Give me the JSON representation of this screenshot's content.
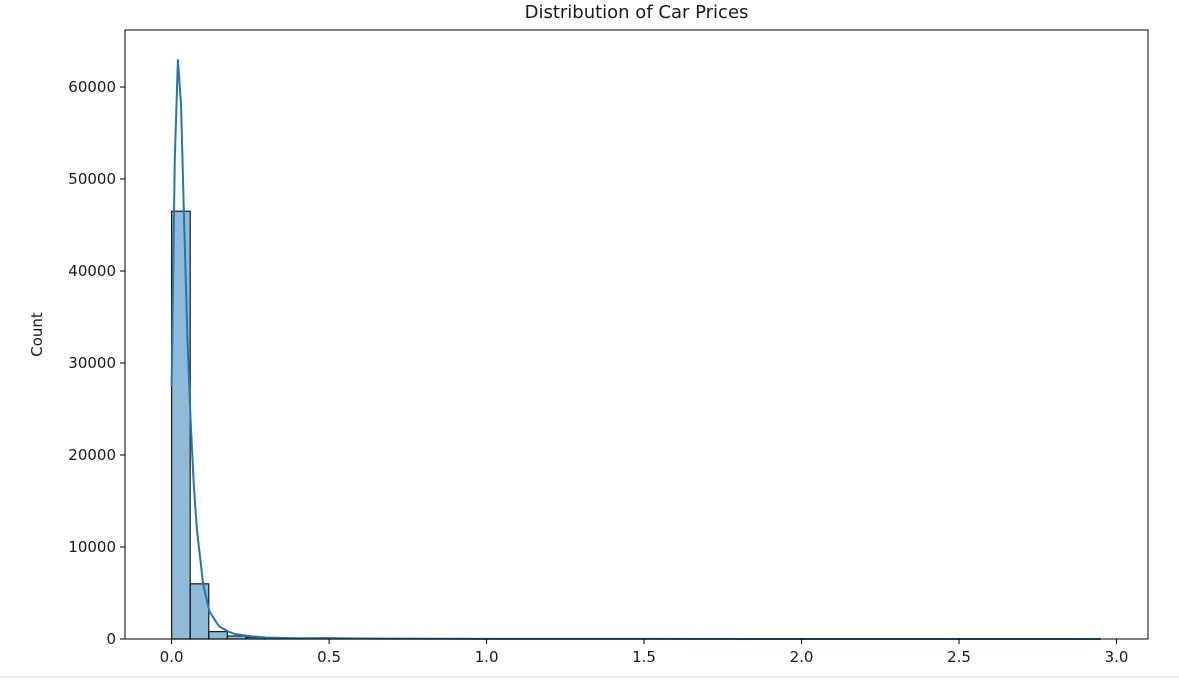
{
  "chart_data": {
    "type": "bar",
    "title": "Distribution of Car Prices",
    "xlabel": "",
    "ylabel": "Count",
    "xlim": [
      -0.148,
      3.1
    ],
    "ylim": [
      0,
      66200
    ],
    "grid": false,
    "legend": "none",
    "colors": {
      "bar_fill": "#1f77b4",
      "kde_line": "#1f77b4",
      "bar_edge": "#1a1a1a"
    },
    "x_ticks": [
      {
        "value": 0.0,
        "label": "0.0"
      },
      {
        "value": 0.5,
        "label": "0.5"
      },
      {
        "value": 1.0,
        "label": "1.0"
      },
      {
        "value": 1.5,
        "label": "1.5"
      },
      {
        "value": 2.0,
        "label": "2.0"
      },
      {
        "value": 2.5,
        "label": "2.5"
      },
      {
        "value": 3.0,
        "label": "3.0"
      }
    ],
    "y_ticks": [
      {
        "value": 0,
        "label": "0"
      },
      {
        "value": 10000,
        "label": "10000"
      },
      {
        "value": 20000,
        "label": "20000"
      },
      {
        "value": 30000,
        "label": "30000"
      },
      {
        "value": 40000,
        "label": "40000"
      },
      {
        "value": 50000,
        "label": "50000"
      },
      {
        "value": 60000,
        "label": "60000"
      }
    ],
    "histogram_bins": [
      {
        "x0": 0.0,
        "x1": 0.059,
        "count": 46500
      },
      {
        "x0": 0.059,
        "x1": 0.118,
        "count": 6000
      },
      {
        "x0": 0.118,
        "x1": 0.177,
        "count": 800
      },
      {
        "x0": 0.177,
        "x1": 0.236,
        "count": 330
      },
      {
        "x0": 0.236,
        "x1": 0.295,
        "count": 170
      },
      {
        "x0": 0.295,
        "x1": 0.354,
        "count": 90
      },
      {
        "x0": 0.354,
        "x1": 0.413,
        "count": 55
      },
      {
        "x0": 0.413,
        "x1": 0.472,
        "count": 35
      },
      {
        "x0": 0.472,
        "x1": 0.531,
        "count": 100
      },
      {
        "x0": 0.531,
        "x1": 0.59,
        "count": 25
      },
      {
        "x0": 0.59,
        "x1": 0.649,
        "count": 20
      },
      {
        "x0": 0.649,
        "x1": 0.708,
        "count": 15
      },
      {
        "x0": 0.708,
        "x1": 0.767,
        "count": 40
      },
      {
        "x0": 0.767,
        "x1": 0.826,
        "count": 10
      },
      {
        "x0": 0.826,
        "x1": 0.885,
        "count": 8
      },
      {
        "x0": 0.885,
        "x1": 0.944,
        "count": 6
      },
      {
        "x0": 0.944,
        "x1": 1.003,
        "count": 20
      }
    ],
    "kde_curve": [
      {
        "x": 0.0,
        "y": 27500
      },
      {
        "x": 0.01,
        "y": 52000
      },
      {
        "x": 0.02,
        "y": 63000
      },
      {
        "x": 0.03,
        "y": 58000
      },
      {
        "x": 0.04,
        "y": 45000
      },
      {
        "x": 0.05,
        "y": 33000
      },
      {
        "x": 0.06,
        "y": 24000
      },
      {
        "x": 0.07,
        "y": 17000
      },
      {
        "x": 0.08,
        "y": 12000
      },
      {
        "x": 0.1,
        "y": 6000
      },
      {
        "x": 0.12,
        "y": 3000
      },
      {
        "x": 0.15,
        "y": 1400
      },
      {
        "x": 0.18,
        "y": 800
      },
      {
        "x": 0.2,
        "y": 550
      },
      {
        "x": 0.25,
        "y": 300
      },
      {
        "x": 0.3,
        "y": 170
      },
      {
        "x": 0.35,
        "y": 110
      },
      {
        "x": 0.4,
        "y": 80
      },
      {
        "x": 0.5,
        "y": 100
      },
      {
        "x": 0.6,
        "y": 50
      },
      {
        "x": 0.75,
        "y": 40
      },
      {
        "x": 1.0,
        "y": 20
      },
      {
        "x": 1.5,
        "y": 10
      },
      {
        "x": 2.0,
        "y": 5
      },
      {
        "x": 2.5,
        "y": 3
      },
      {
        "x": 2.95,
        "y": 2
      }
    ]
  }
}
